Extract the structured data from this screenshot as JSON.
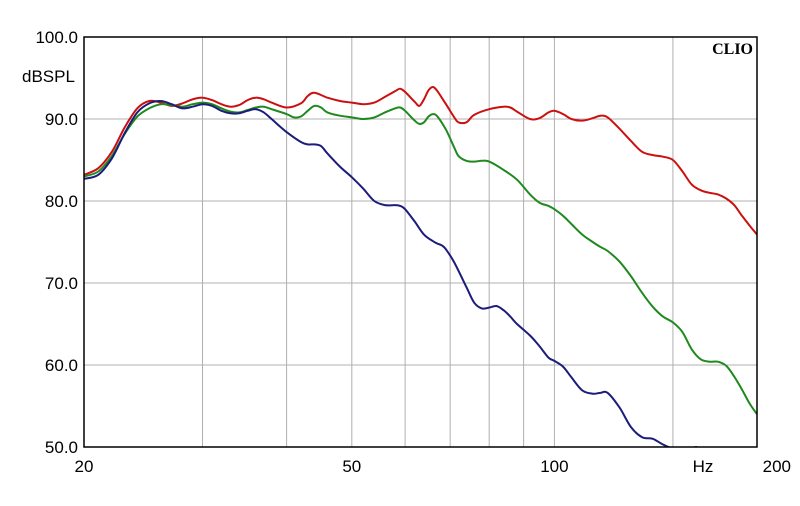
{
  "chart_data": {
    "type": "line",
    "brand": "CLIO",
    "ylabel": "dBSPL",
    "xunit": "Hz",
    "xscale": "log",
    "xlim": [
      20,
      200
    ],
    "ylim": [
      50,
      100
    ],
    "grid": true,
    "y_ticks": [
      {
        "value": 100,
        "label": "100.0"
      },
      {
        "value": 90,
        "label": "90.0"
      },
      {
        "value": 80,
        "label": "80.0"
      },
      {
        "value": 70,
        "label": "70.0"
      },
      {
        "value": 60,
        "label": "60.0"
      },
      {
        "value": 50,
        "label": "50.0"
      }
    ],
    "x_ticks": [
      {
        "value": 20,
        "label": "20"
      },
      {
        "value": 50,
        "label": "50"
      },
      {
        "value": 100,
        "label": "100"
      },
      {
        "value": 200,
        "label": "200"
      }
    ],
    "x_gridlines": [
      30,
      40,
      50,
      60,
      70,
      80,
      90,
      100,
      150
    ],
    "colors": {
      "red": "#cc1010",
      "green": "#1e8a1e",
      "blue": "#1c1c7a",
      "grid": "#b0b0b0",
      "frame": "#000000"
    },
    "series": [
      {
        "color": "#cc1010",
        "points": [
          [
            20,
            83.2
          ],
          [
            21,
            84.0
          ],
          [
            22,
            86.0
          ],
          [
            23,
            89.0
          ],
          [
            24,
            91.3
          ],
          [
            25,
            92.2
          ],
          [
            26,
            92.0
          ],
          [
            27,
            91.6
          ],
          [
            28,
            91.9
          ],
          [
            29,
            92.4
          ],
          [
            30,
            92.6
          ],
          [
            31,
            92.3
          ],
          [
            32,
            91.8
          ],
          [
            33,
            91.5
          ],
          [
            34,
            91.7
          ],
          [
            35,
            92.3
          ],
          [
            36,
            92.6
          ],
          [
            37,
            92.4
          ],
          [
            38,
            92.0
          ],
          [
            40,
            91.4
          ],
          [
            42,
            91.9
          ],
          [
            43,
            92.8
          ],
          [
            44,
            93.2
          ],
          [
            46,
            92.6
          ],
          [
            48,
            92.2
          ],
          [
            50,
            92.0
          ],
          [
            52,
            91.8
          ],
          [
            54,
            92.0
          ],
          [
            56,
            92.7
          ],
          [
            58,
            93.4
          ],
          [
            59,
            93.7
          ],
          [
            60,
            93.3
          ],
          [
            62,
            92.1
          ],
          [
            63,
            91.6
          ],
          [
            64,
            92.4
          ],
          [
            65,
            93.5
          ],
          [
            66,
            93.9
          ],
          [
            67,
            93.4
          ],
          [
            69,
            91.8
          ],
          [
            71,
            90.2
          ],
          [
            72,
            89.6
          ],
          [
            74,
            89.6
          ],
          [
            76,
            90.5
          ],
          [
            80,
            91.2
          ],
          [
            84,
            91.5
          ],
          [
            86,
            91.4
          ],
          [
            88,
            90.9
          ],
          [
            92,
            90.0
          ],
          [
            95,
            90.1
          ],
          [
            98,
            90.8
          ],
          [
            100,
            91.0
          ],
          [
            103,
            90.6
          ],
          [
            106,
            90.0
          ],
          [
            110,
            89.8
          ],
          [
            114,
            90.1
          ],
          [
            117,
            90.4
          ],
          [
            120,
            90.2
          ],
          [
            125,
            88.8
          ],
          [
            130,
            87.3
          ],
          [
            135,
            86.0
          ],
          [
            140,
            85.6
          ],
          [
            145,
            85.4
          ],
          [
            150,
            85.0
          ],
          [
            155,
            83.6
          ],
          [
            160,
            82.0
          ],
          [
            165,
            81.3
          ],
          [
            170,
            81.0
          ],
          [
            175,
            80.8
          ],
          [
            180,
            80.3
          ],
          [
            185,
            79.5
          ],
          [
            190,
            78.2
          ],
          [
            195,
            77.0
          ],
          [
            200,
            75.9
          ]
        ]
      },
      {
        "color": "#1e8a1e",
        "points": [
          [
            20,
            83.0
          ],
          [
            21,
            83.6
          ],
          [
            22,
            85.5
          ],
          [
            23,
            88.2
          ],
          [
            24,
            90.3
          ],
          [
            25,
            91.3
          ],
          [
            26,
            91.8
          ],
          [
            27,
            91.7
          ],
          [
            28,
            91.5
          ],
          [
            29,
            91.8
          ],
          [
            30,
            92.0
          ],
          [
            31,
            91.8
          ],
          [
            32,
            91.3
          ],
          [
            33,
            90.9
          ],
          [
            34,
            90.8
          ],
          [
            35,
            91.1
          ],
          [
            36,
            91.4
          ],
          [
            37,
            91.5
          ],
          [
            38,
            91.2
          ],
          [
            40,
            90.6
          ],
          [
            41,
            90.2
          ],
          [
            42,
            90.3
          ],
          [
            43,
            91.0
          ],
          [
            44,
            91.6
          ],
          [
            45,
            91.4
          ],
          [
            46,
            90.8
          ],
          [
            48,
            90.4
          ],
          [
            50,
            90.2
          ],
          [
            52,
            90.0
          ],
          [
            54,
            90.2
          ],
          [
            56,
            90.8
          ],
          [
            58,
            91.3
          ],
          [
            59,
            91.4
          ],
          [
            60,
            91.0
          ],
          [
            62,
            89.8
          ],
          [
            63,
            89.4
          ],
          [
            64,
            89.6
          ],
          [
            65,
            90.3
          ],
          [
            66,
            90.6
          ],
          [
            67,
            90.3
          ],
          [
            69,
            88.7
          ],
          [
            71,
            86.5
          ],
          [
            72,
            85.5
          ],
          [
            74,
            84.9
          ],
          [
            76,
            84.8
          ],
          [
            78,
            84.9
          ],
          [
            80,
            84.8
          ],
          [
            84,
            83.8
          ],
          [
            88,
            82.6
          ],
          [
            92,
            80.8
          ],
          [
            95,
            79.8
          ],
          [
            98,
            79.4
          ],
          [
            100,
            79.0
          ],
          [
            103,
            78.2
          ],
          [
            106,
            77.2
          ],
          [
            110,
            75.9
          ],
          [
            114,
            75.0
          ],
          [
            117,
            74.4
          ],
          [
            120,
            73.9
          ],
          [
            125,
            72.6
          ],
          [
            130,
            70.8
          ],
          [
            135,
            68.8
          ],
          [
            140,
            67.1
          ],
          [
            145,
            65.9
          ],
          [
            150,
            65.2
          ],
          [
            155,
            64.0
          ],
          [
            160,
            61.9
          ],
          [
            165,
            60.7
          ],
          [
            170,
            60.4
          ],
          [
            175,
            60.4
          ],
          [
            180,
            59.9
          ],
          [
            185,
            58.6
          ],
          [
            190,
            57.0
          ],
          [
            195,
            55.3
          ],
          [
            200,
            54.0
          ]
        ]
      },
      {
        "color": "#1c1c7a",
        "points": [
          [
            20,
            82.7
          ],
          [
            21,
            83.2
          ],
          [
            22,
            85.2
          ],
          [
            23,
            88.3
          ],
          [
            24,
            90.8
          ],
          [
            25,
            91.9
          ],
          [
            26,
            92.2
          ],
          [
            27,
            91.8
          ],
          [
            28,
            91.3
          ],
          [
            29,
            91.5
          ],
          [
            30,
            91.8
          ],
          [
            31,
            91.6
          ],
          [
            32,
            91.0
          ],
          [
            33,
            90.7
          ],
          [
            34,
            90.7
          ],
          [
            35,
            91.0
          ],
          [
            36,
            91.2
          ],
          [
            37,
            90.8
          ],
          [
            38,
            90.0
          ],
          [
            40,
            88.4
          ],
          [
            42,
            87.2
          ],
          [
            43,
            86.9
          ],
          [
            44,
            86.9
          ],
          [
            45,
            86.7
          ],
          [
            46,
            85.8
          ],
          [
            48,
            84.2
          ],
          [
            50,
            82.9
          ],
          [
            52,
            81.5
          ],
          [
            54,
            80.0
          ],
          [
            56,
            79.5
          ],
          [
            58,
            79.5
          ],
          [
            59,
            79.4
          ],
          [
            60,
            79.0
          ],
          [
            62,
            77.5
          ],
          [
            64,
            75.9
          ],
          [
            66,
            75.1
          ],
          [
            67,
            74.8
          ],
          [
            68,
            74.6
          ],
          [
            69,
            74.1
          ],
          [
            71,
            72.5
          ],
          [
            74,
            69.5
          ],
          [
            76,
            67.6
          ],
          [
            78,
            66.9
          ],
          [
            80,
            67.0
          ],
          [
            82,
            67.2
          ],
          [
            84,
            66.7
          ],
          [
            86,
            65.9
          ],
          [
            88,
            65.0
          ],
          [
            92,
            63.6
          ],
          [
            95,
            62.3
          ],
          [
            98,
            60.9
          ],
          [
            100,
            60.5
          ],
          [
            103,
            59.8
          ],
          [
            106,
            58.5
          ],
          [
            110,
            56.9
          ],
          [
            114,
            56.5
          ],
          [
            117,
            56.6
          ],
          [
            120,
            56.6
          ],
          [
            125,
            54.8
          ],
          [
            130,
            52.4
          ],
          [
            135,
            51.2
          ],
          [
            140,
            51.0
          ],
          [
            145,
            50.3
          ],
          [
            150,
            49.8
          ],
          [
            155,
            49.6
          ],
          [
            160,
            49.9
          ],
          [
            163,
            50.0
          ]
        ]
      }
    ]
  }
}
